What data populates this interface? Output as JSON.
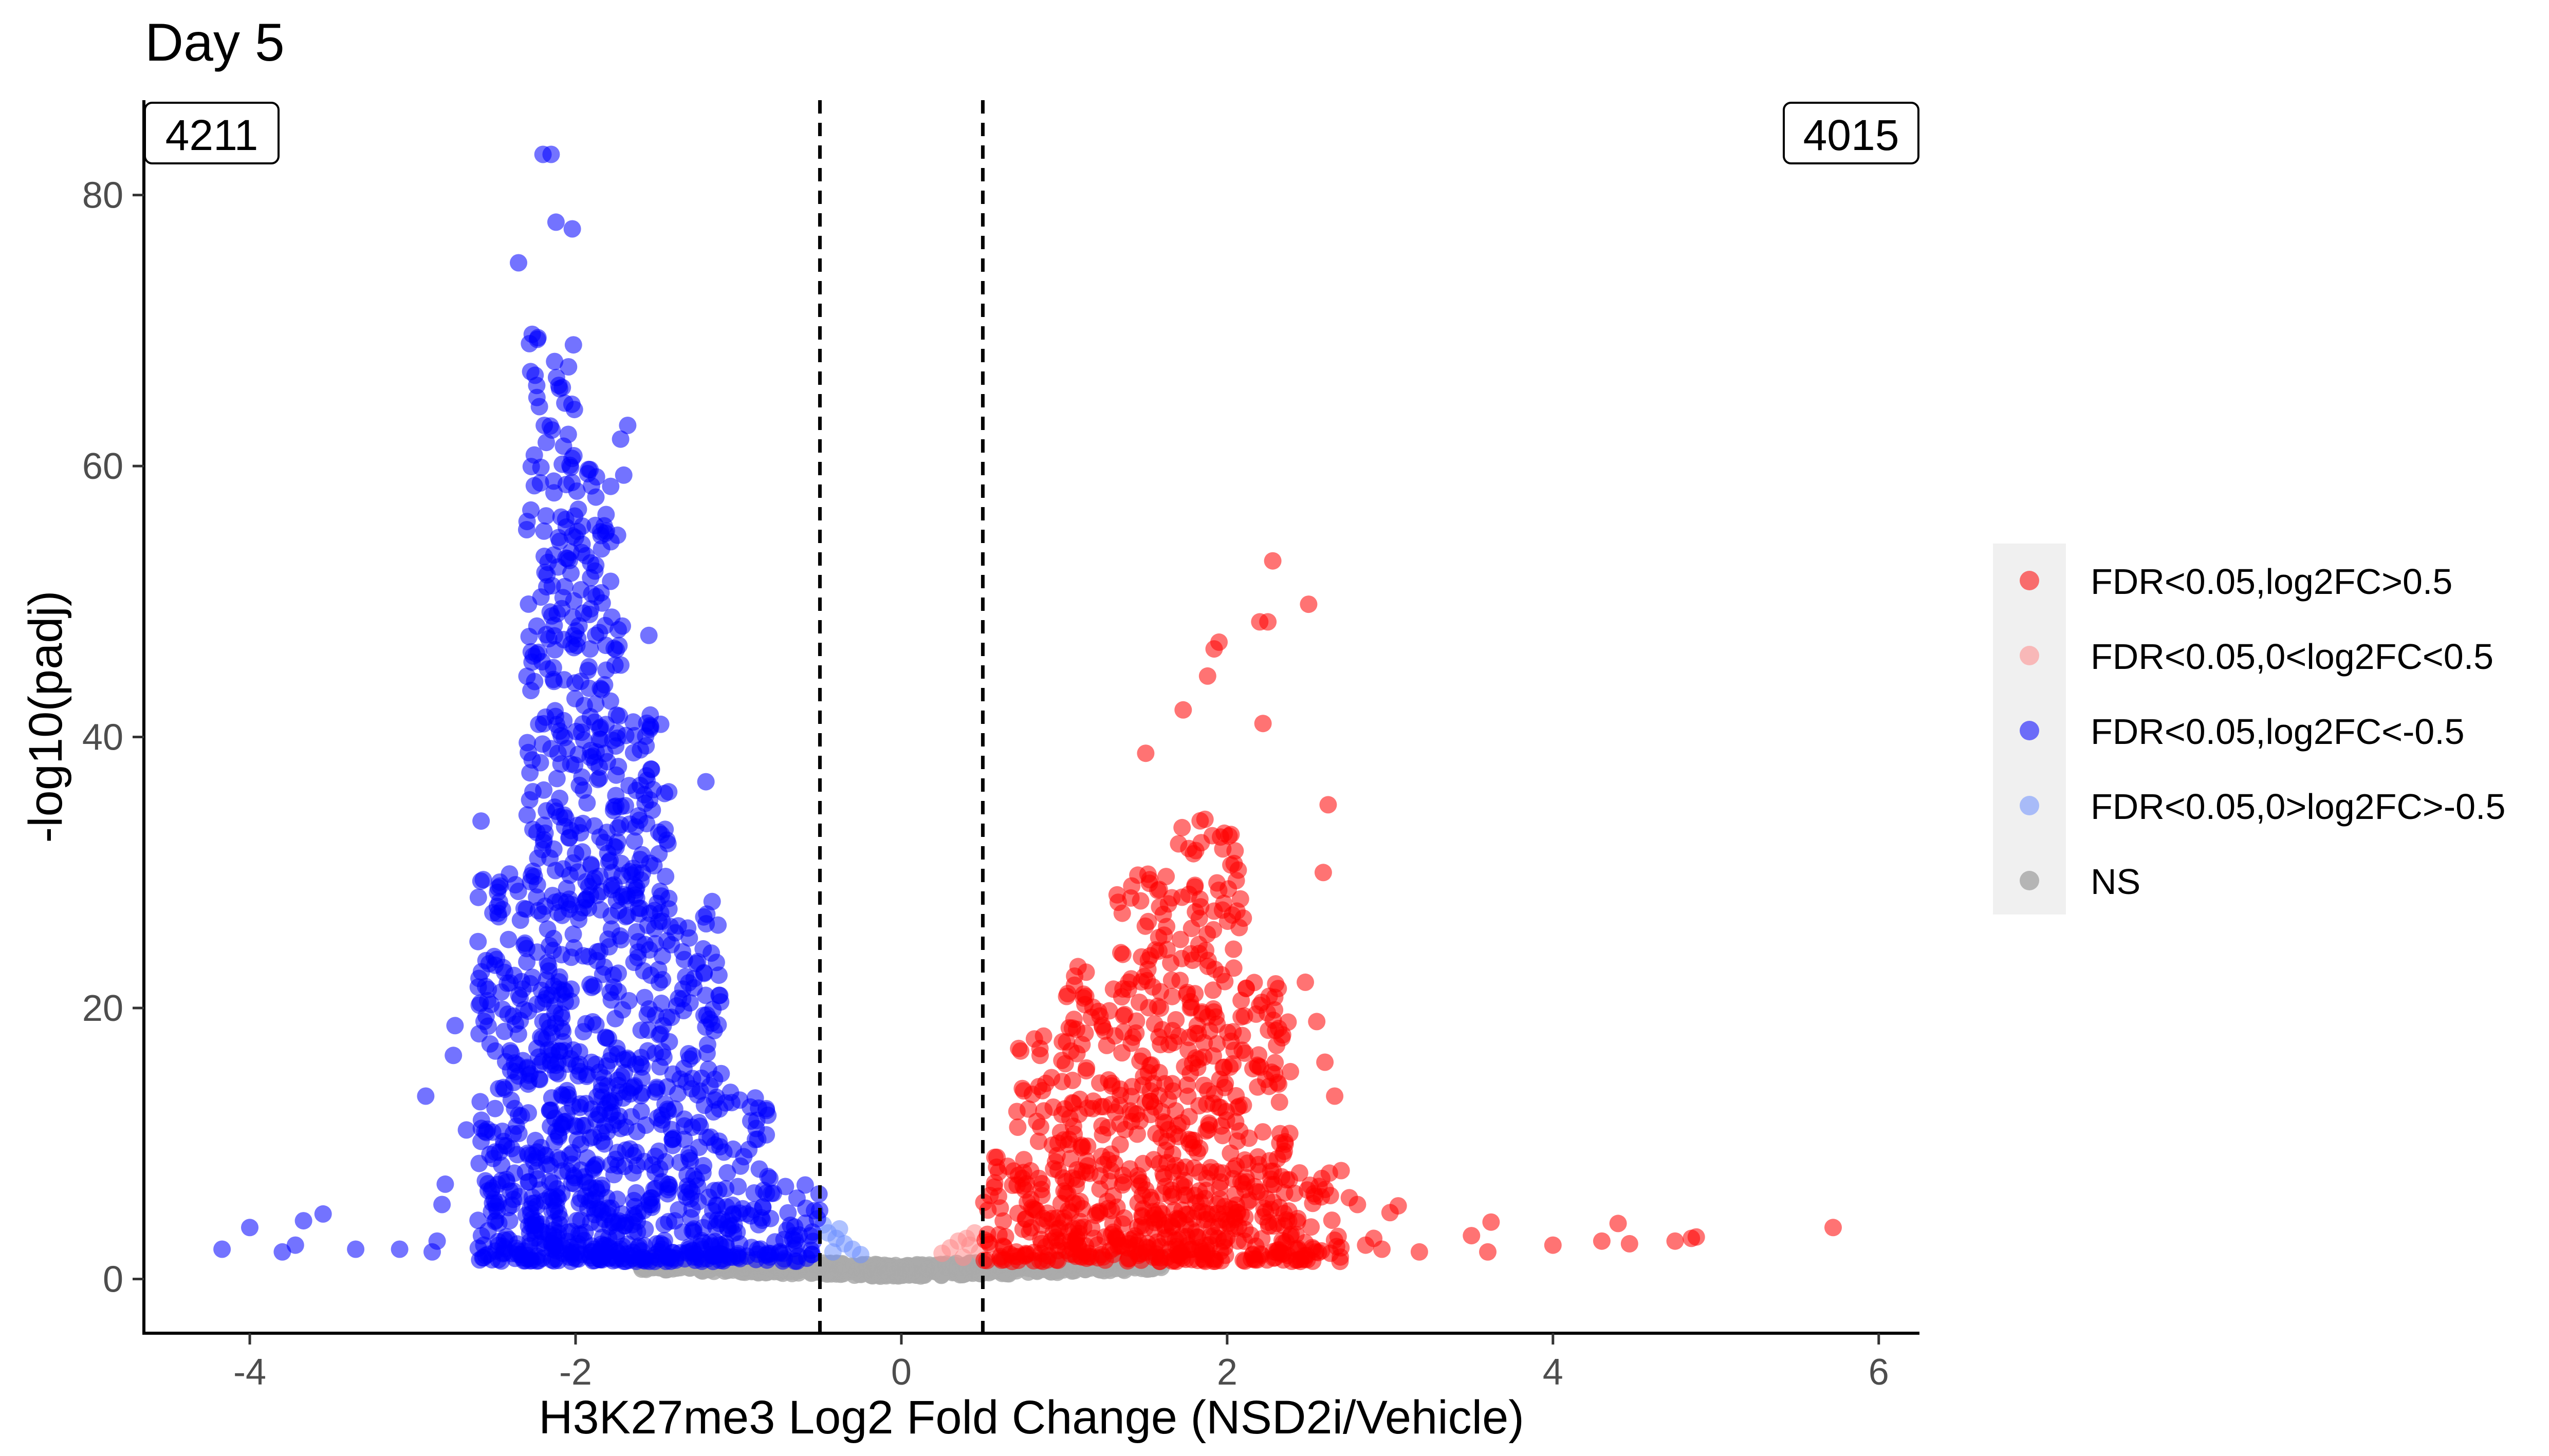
{
  "chart_data": {
    "type": "scatter",
    "title": "Day 5",
    "xlabel": "H3K27me3 Log2 Fold Change (NSD2i/Vehicle)",
    "ylabel": "-log10(padj)",
    "xlim": [
      -4.65,
      6.25
    ],
    "ylim": [
      -4,
      87
    ],
    "x_ticks": [
      -4,
      -2,
      0,
      2,
      4,
      6
    ],
    "y_ticks": [
      0,
      20,
      40,
      60,
      80
    ],
    "x_tick_labels": [
      "-4",
      "-2",
      "0",
      "2",
      "4",
      "6"
    ],
    "y_tick_labels": [
      "0",
      "20",
      "40",
      "60",
      "80"
    ],
    "thresholds": [
      -0.5,
      0.5
    ],
    "grid": false,
    "legend_position": "right",
    "count_labels": {
      "left": "4211",
      "right": "4015"
    },
    "series": [
      {
        "name": "FDR<0.05,log2FC>0.5",
        "color": "#ff0000",
        "points": [
          [
            5.72,
            3.8
          ],
          [
            4.88,
            3.1
          ],
          [
            4.85,
            3.0
          ],
          [
            4.75,
            2.8
          ],
          [
            4.47,
            2.6
          ],
          [
            4.4,
            4.1
          ],
          [
            4.3,
            2.8
          ],
          [
            4.0,
            2.5
          ],
          [
            3.62,
            4.2
          ],
          [
            3.6,
            2.0
          ],
          [
            3.5,
            3.2
          ],
          [
            3.18,
            2.0
          ],
          [
            3.05,
            5.4
          ],
          [
            3.0,
            4.9
          ],
          [
            2.95,
            2.2
          ],
          [
            2.9,
            3.0
          ],
          [
            2.75,
            6.0
          ],
          [
            2.62,
            35.0
          ],
          [
            2.59,
            30.0
          ],
          [
            2.5,
            49.8
          ],
          [
            2.28,
            53.0
          ],
          [
            2.25,
            48.5
          ],
          [
            2.22,
            41.0
          ],
          [
            2.2,
            48.5
          ],
          [
            1.95,
            47.0
          ],
          [
            1.92,
            46.5
          ],
          [
            1.88,
            44.5
          ],
          [
            1.73,
            42.0
          ],
          [
            1.5,
            38.8
          ],
          [
            2.48,
            21.9
          ],
          [
            2.55,
            19.0
          ],
          [
            2.6,
            16.0
          ],
          [
            2.7,
            8.0
          ],
          [
            2.8,
            5.5
          ],
          [
            2.85,
            2.5
          ],
          [
            2.66,
            13.5
          ]
        ],
        "cloud": [
          {
            "from": 0.5,
            "to": 0.7,
            "ymax": 9
          },
          {
            "from": 0.7,
            "to": 1.0,
            "ymax": 18
          },
          {
            "from": 1.0,
            "to": 1.3,
            "ymax": 24
          },
          {
            "from": 1.3,
            "to": 1.7,
            "ymax": 30
          },
          {
            "from": 1.7,
            "to": 2.1,
            "ymax": 34
          },
          {
            "from": 2.1,
            "to": 2.4,
            "ymax": 22
          },
          {
            "from": 2.4,
            "to": 2.7,
            "ymax": 8
          }
        ]
      },
      {
        "name": "FDR<0.05,0<log2FC<0.5",
        "color": "#ff8a8a",
        "points": [
          [
            0.3,
            2.3
          ],
          [
            0.35,
            2.8
          ],
          [
            0.4,
            3.0
          ],
          [
            0.45,
            3.4
          ],
          [
            0.25,
            1.9
          ],
          [
            0.42,
            2.5
          ],
          [
            0.48,
            2.0
          ],
          [
            0.38,
            1.6
          ]
        ]
      },
      {
        "name": "FDR<0.05,log2FC<-0.5",
        "color": "#0000ff",
        "points": [
          [
            -4.17,
            2.2
          ],
          [
            -4.0,
            3.8
          ],
          [
            -3.8,
            2.0
          ],
          [
            -3.72,
            2.5
          ],
          [
            -3.67,
            4.3
          ],
          [
            -3.55,
            4.8
          ],
          [
            -3.35,
            2.2
          ],
          [
            -3.08,
            2.2
          ],
          [
            -2.88,
            2.0
          ],
          [
            -2.85,
            2.8
          ],
          [
            -2.82,
            5.5
          ],
          [
            -2.8,
            7.0
          ],
          [
            -2.92,
            13.5
          ],
          [
            -2.75,
            16.5
          ],
          [
            -2.74,
            18.7
          ],
          [
            -2.67,
            11.0
          ],
          [
            -2.58,
            33.8
          ],
          [
            -2.55,
            23.5
          ],
          [
            -2.5,
            23.8
          ],
          [
            -2.48,
            27.5
          ],
          [
            -2.35,
            75.0
          ],
          [
            -2.2,
            83.0
          ],
          [
            -2.15,
            83.0
          ],
          [
            -2.12,
            78.0
          ],
          [
            -2.02,
            77.5
          ],
          [
            -2.3,
            55.3
          ],
          [
            -1.68,
            63.0
          ],
          [
            -1.55,
            47.5
          ],
          [
            -1.2,
            36.7
          ]
        ],
        "cloud": [
          {
            "from": -2.6,
            "to": -2.3,
            "ymax": 30
          },
          {
            "from": -2.3,
            "to": -2.0,
            "ymax": 70
          },
          {
            "from": -2.0,
            "to": -1.7,
            "ymax": 62
          },
          {
            "from": -1.7,
            "to": -1.4,
            "ymax": 42
          },
          {
            "from": -1.4,
            "to": -1.1,
            "ymax": 28
          },
          {
            "from": -1.1,
            "to": -0.8,
            "ymax": 14
          },
          {
            "from": -0.8,
            "to": -0.5,
            "ymax": 7
          }
        ]
      },
      {
        "name": "FDR<0.05,0>log2FC>-0.5",
        "color": "#6e8fff",
        "points": [
          [
            -0.45,
            3.4
          ],
          [
            -0.4,
            3.0
          ],
          [
            -0.35,
            2.6
          ],
          [
            -0.3,
            2.2
          ],
          [
            -0.48,
            4.0
          ],
          [
            -0.42,
            2.0
          ],
          [
            -0.25,
            1.8
          ],
          [
            -0.38,
            3.7
          ]
        ]
      },
      {
        "name": "NS",
        "color": "#aaaaaa",
        "cloud": [
          {
            "from": -1.6,
            "to": 1.6,
            "ymax": 1.8
          }
        ]
      }
    ]
  }
}
